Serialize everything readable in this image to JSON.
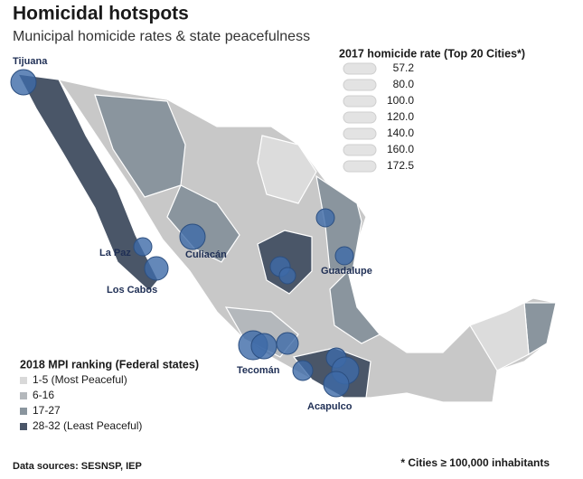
{
  "title": "Homicidal hotspots",
  "subtitle": "Municipal homicide rates & state peacefulness",
  "rate_legend": {
    "title": "2017 homicide rate (Top 20 Cities*)",
    "items": [
      "57.2",
      "80.0",
      "100.0",
      "120.0",
      "140.0",
      "160.0",
      "172.5"
    ]
  },
  "mpi_legend": {
    "title": "2018 MPI ranking (Federal states)",
    "items": [
      {
        "label": "1-5 (Most Peaceful)",
        "color": "#d9d9d9"
      },
      {
        "label": "6-16",
        "color": "#b4b8bc"
      },
      {
        "label": "17-27",
        "color": "#8a959e"
      },
      {
        "label": "28-32 (Least Peaceful)",
        "color": "#4a5668"
      }
    ]
  },
  "cities": [
    "Tijuana",
    "La Paz",
    "Culiacán",
    "Los Cabos",
    "Guadalupe",
    "Tecomán",
    "Acapulco"
  ],
  "sources": "Data sources: SESNSP, IEP",
  "footnote": "* Cities ≥ 100,000 inhabitants"
}
